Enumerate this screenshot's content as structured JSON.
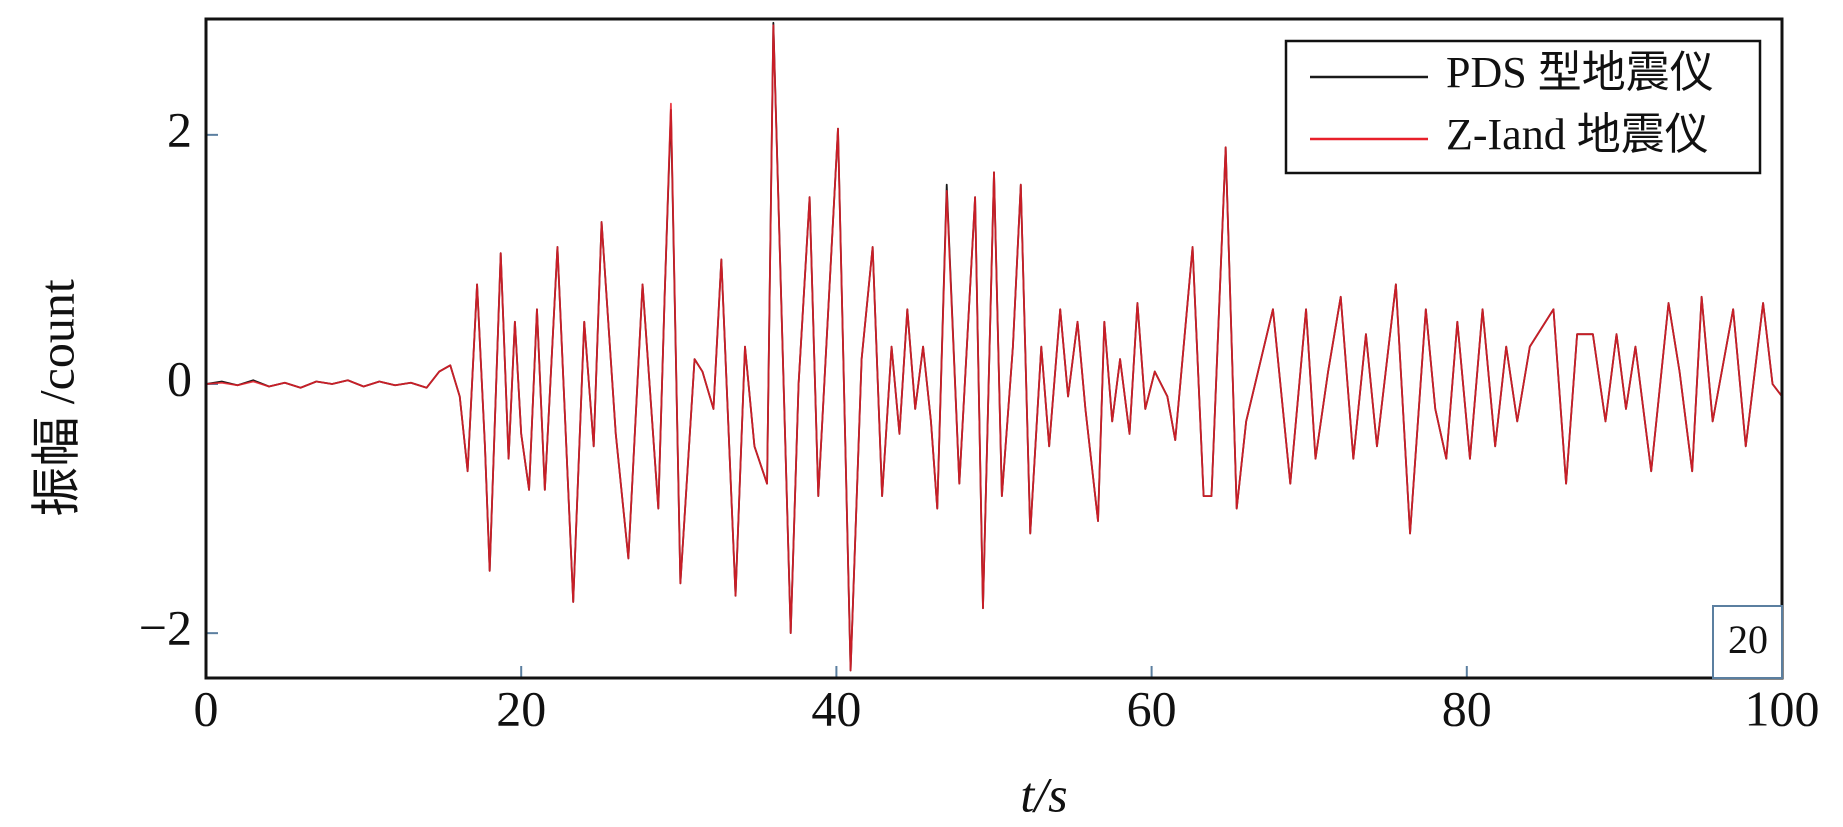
{
  "chart_data": {
    "type": "line",
    "xlabel": "t/s",
    "ylabel": "振幅 /count",
    "annotation": "20",
    "legend": "upper right",
    "xlim": [
      0,
      100
    ],
    "xticks": [
      0,
      20,
      40,
      60,
      80,
      100
    ],
    "ylim": [
      -2.36,
      2.93
    ],
    "yticks": [
      {
        "value": -2,
        "label": "−2"
      },
      0,
      2
    ],
    "x": [
      0,
      1,
      2,
      3,
      4,
      5,
      6,
      7,
      8,
      9,
      10,
      11,
      12,
      13,
      14,
      14.8,
      15.5,
      16.1,
      16.6,
      17.2,
      17.7,
      18,
      18.7,
      19.2,
      19.6,
      20,
      20.5,
      21,
      21.5,
      22.3,
      23.3,
      24,
      24.6,
      25.1,
      26,
      26.8,
      27.7,
      28.7,
      29.1,
      29.5,
      30.1,
      31,
      31.5,
      32.2,
      32.7,
      33.6,
      34.2,
      34.8,
      35.6,
      36,
      37.1,
      37.6,
      38.3,
      38.85,
      40.1,
      40.9,
      41.6,
      42.3,
      42.9,
      43.5,
      44,
      44.5,
      45,
      45.5,
      46,
      46.4,
      47,
      47.8,
      48.8,
      49.3,
      50,
      50.5,
      51.2,
      51.7,
      52.3,
      53,
      53.5,
      54.2,
      54.7,
      55.3,
      55.8,
      56.6,
      57,
      57.5,
      58,
      58.6,
      59.1,
      59.6,
      60.2,
      61,
      61.5,
      62.6,
      63.3,
      63.8,
      64.7,
      65.4,
      66,
      67.7,
      68.8,
      69.8,
      70.4,
      71.2,
      72,
      72.8,
      73.6,
      74.3,
      75.5,
      76.4,
      77.4,
      78,
      78.7,
      79.4,
      80.2,
      81,
      81.8,
      82.5,
      83.2,
      84,
      85.5,
      86.3,
      87,
      88,
      88.8,
      89.5,
      90.1,
      90.7,
      91.7,
      92.8,
      93.5,
      94.3,
      94.9,
      95.6,
      96.9,
      97.7,
      98.8,
      99.4,
      100
    ],
    "series": [
      {
        "name": "PDS 型地震仪",
        "color": "#1a1a1a",
        "values": [
          0,
          0.02,
          -0.01,
          0.03,
          -0.02,
          0.01,
          -0.03,
          0.02,
          0,
          0.03,
          -0.02,
          0.02,
          -0.01,
          0.01,
          -0.03,
          0.1,
          0.15,
          -0.1,
          -0.7,
          0.8,
          -0.5,
          -1.5,
          1.05,
          -0.6,
          0.5,
          -0.4,
          -0.85,
          0.6,
          -0.85,
          1.1,
          -1.75,
          0.5,
          -0.5,
          1.3,
          -0.4,
          -1.4,
          0.8,
          -1.0,
          0.7,
          2.2,
          -1.6,
          0.2,
          0.1,
          -0.2,
          1.0,
          -1.7,
          0.3,
          -0.5,
          -0.8,
          2.9,
          -2.0,
          0,
          1.5,
          -0.9,
          2.05,
          -2.3,
          0.2,
          1.1,
          -0.9,
          0.3,
          -0.4,
          0.6,
          -0.2,
          0.3,
          -0.3,
          -1.0,
          1.6,
          -0.8,
          1.5,
          -1.8,
          1.7,
          -0.9,
          0.3,
          1.6,
          -1.2,
          0.3,
          -0.5,
          0.6,
          -0.1,
          0.5,
          -0.2,
          -1.1,
          0.5,
          -0.3,
          0.2,
          -0.4,
          0.65,
          -0.2,
          0.1,
          -0.1,
          -0.45,
          1.1,
          -0.9,
          -0.9,
          1.9,
          -1.0,
          -0.3,
          0.6,
          -0.8,
          0.6,
          -0.6,
          0.1,
          0.7,
          -0.6,
          0.4,
          -0.5,
          0.8,
          -1.2,
          0.6,
          -0.2,
          -0.6,
          0.5,
          -0.6,
          0.6,
          -0.5,
          0.3,
          -0.3,
          0.3,
          0.6,
          -0.8,
          0.4,
          0.4,
          -0.3,
          0.4,
          -0.2,
          0.3,
          -0.7,
          0.65,
          0.1,
          -0.7,
          0.7,
          -0.3,
          0.6,
          -0.5,
          0.65,
          0,
          -0.1
        ]
      },
      {
        "name": "Z-Iand 地震仪",
        "color": "#e8202a",
        "values": [
          0,
          0.01,
          -0.01,
          0.02,
          -0.02,
          0.01,
          -0.03,
          0.02,
          0,
          0.03,
          -0.02,
          0.02,
          -0.01,
          0.01,
          -0.03,
          0.1,
          0.15,
          -0.1,
          -0.7,
          0.8,
          -0.5,
          -1.5,
          1.05,
          -0.6,
          0.5,
          -0.4,
          -0.85,
          0.6,
          -0.85,
          1.1,
          -1.75,
          0.5,
          -0.5,
          1.3,
          -0.4,
          -1.4,
          0.8,
          -1.0,
          0.7,
          2.25,
          -1.6,
          0.2,
          0.1,
          -0.2,
          1.0,
          -1.7,
          0.3,
          -0.5,
          -0.8,
          2.88,
          -2.0,
          0,
          1.5,
          -0.9,
          2.05,
          -2.3,
          0.2,
          1.1,
          -0.9,
          0.3,
          -0.4,
          0.6,
          -0.2,
          0.3,
          -0.3,
          -1.0,
          1.55,
          -0.8,
          1.5,
          -1.8,
          1.7,
          -0.9,
          0.3,
          1.6,
          -1.2,
          0.3,
          -0.5,
          0.6,
          -0.1,
          0.5,
          -0.2,
          -1.1,
          0.5,
          -0.3,
          0.2,
          -0.4,
          0.65,
          -0.2,
          0.1,
          -0.1,
          -0.45,
          1.1,
          -0.9,
          -0.9,
          1.9,
          -1.0,
          -0.3,
          0.6,
          -0.8,
          0.6,
          -0.6,
          0.1,
          0.7,
          -0.6,
          0.4,
          -0.5,
          0.8,
          -1.2,
          0.6,
          -0.2,
          -0.6,
          0.5,
          -0.6,
          0.6,
          -0.5,
          0.3,
          -0.3,
          0.3,
          0.6,
          -0.8,
          0.4,
          0.4,
          -0.3,
          0.4,
          -0.2,
          0.3,
          -0.7,
          0.65,
          0.1,
          -0.7,
          0.7,
          -0.3,
          0.6,
          -0.5,
          0.65,
          0,
          -0.1
        ]
      }
    ]
  }
}
